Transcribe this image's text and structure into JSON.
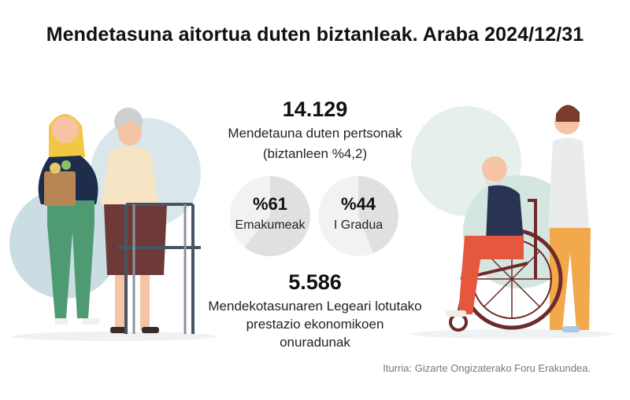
{
  "title": "Mendetasuna aitortua duten biztanleak. Araba 2024/12/31",
  "total": {
    "value": "14.129",
    "label_line1": "Mendetauna duten pertsonak",
    "label_line2": "(biztanleen %4,2)"
  },
  "women": {
    "value": "%61",
    "label": "Emakumeak",
    "fraction": 0.61
  },
  "grade1": {
    "value": "%44",
    "label": "I Gradua",
    "fraction": 0.44
  },
  "benefit": {
    "value": "5.586",
    "label_line1": "Mendekotasunaren Legeari lotutako",
    "label_line2": "prestazio ekonomikoen",
    "label_line3": "onuradunak"
  },
  "source": "Iturria: Gizarte Ongizaterako Foru Erakundea.",
  "colors": {
    "pie_filled": "#e0e0e0",
    "pie_empty": "#f2f2f2",
    "circle_blue": "#c9dde3",
    "circle_green": "#d3e6df"
  }
}
